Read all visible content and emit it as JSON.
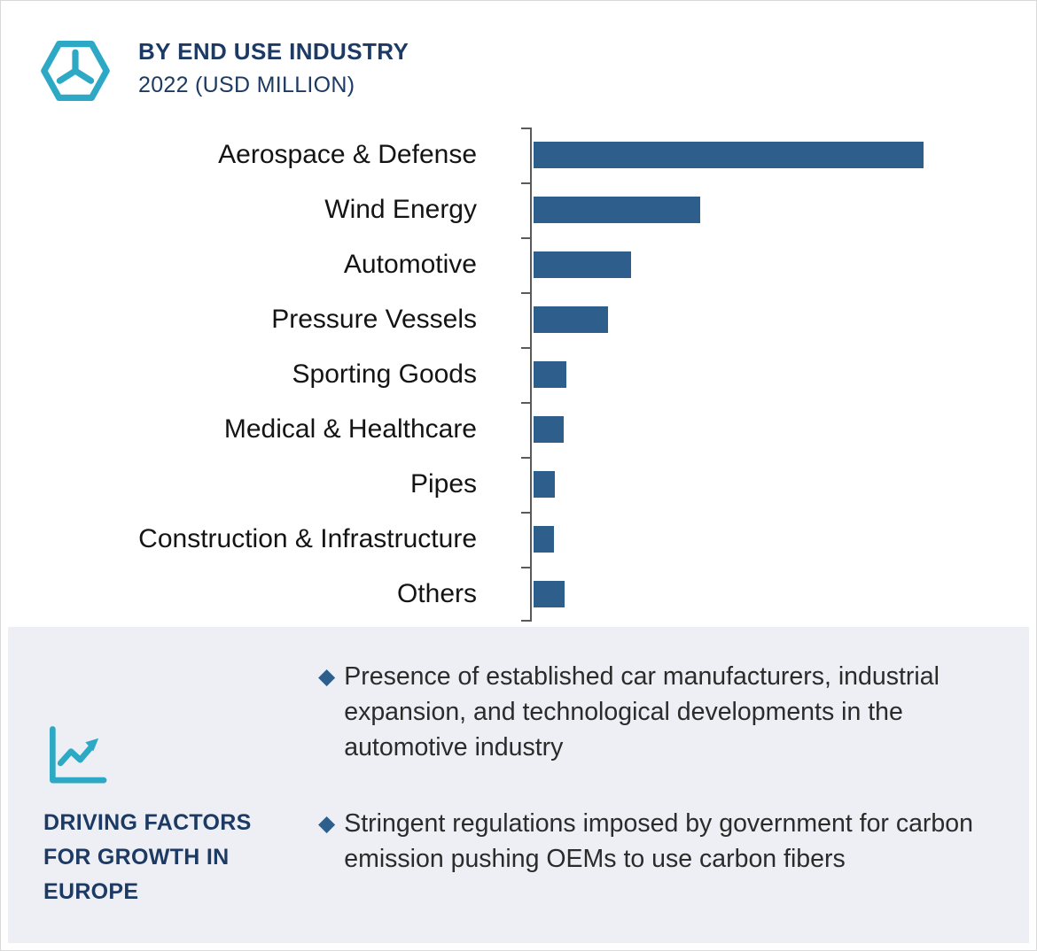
{
  "header": {
    "title": "BY END USE INDUSTRY",
    "subtitle": "2022 (USD MILLION)",
    "icon": "hexagon-y-icon"
  },
  "chart_data": {
    "type": "bar",
    "orientation": "horizontal",
    "title": "BY END USE INDUSTRY 2022 (USD MILLION)",
    "unit": "USD Million",
    "value_axis_labeled": false,
    "categories": [
      "Aerospace & Defense",
      "Wind Energy",
      "Automotive",
      "Pressure Vessels",
      "Sporting Goods",
      "Medical & Healthcare",
      "Pipes",
      "Construction & Infrastructure",
      "Others"
    ],
    "values": [
      440,
      188,
      110,
      84,
      37,
      34,
      24,
      23,
      35
    ],
    "xlim": [
      0,
      450
    ],
    "bar_color": "#2e5f8c",
    "grid": false,
    "legend": false
  },
  "driving_factors": {
    "icon": "line-chart-icon",
    "heading": "DRIVING FACTORS FOR GROWTH IN EUROPE",
    "bullets": [
      "Presence of established car manufacturers, industrial expansion, and technological developments in the automotive industry",
      "Stringent regulations imposed by government for carbon emission pushing OEMs to use carbon fibers"
    ]
  },
  "colors": {
    "navy": "#1c3a63",
    "bar_blue": "#2e5f8c",
    "accent_teal": "#2ea9c5",
    "panel_bg": "#edeff4"
  }
}
